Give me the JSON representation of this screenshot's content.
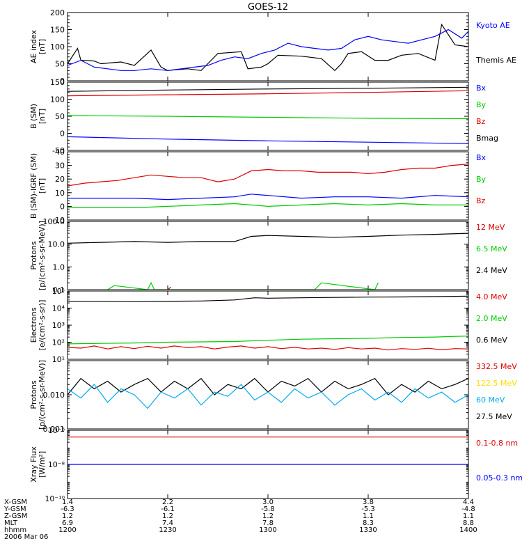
{
  "title": "GOES-12",
  "panels": [
    {
      "id": "ae",
      "ylabel": "AE index\n[nT]",
      "scale": "linear",
      "ylim": [
        0,
        200
      ],
      "ticks": [
        {
          "v": 0,
          "t": "0"
        },
        {
          "v": 50,
          "t": "50"
        },
        {
          "v": 100,
          "t": "100"
        },
        {
          "v": 150,
          "t": "150"
        },
        {
          "v": 200,
          "t": "200"
        }
      ],
      "legend": [
        {
          "text": "Kyoto AE",
          "color": "#0000ff"
        },
        {
          "text": "Themis AE",
          "color": "#000000"
        }
      ]
    },
    {
      "id": "b",
      "ylabel": "B (SM)\n[nT]",
      "scale": "linear",
      "ylim": [
        -50,
        150
      ],
      "ticks": [
        {
          "v": -50,
          "t": "-50"
        },
        {
          "v": 0,
          "t": "0"
        },
        {
          "v": 50,
          "t": "50"
        },
        {
          "v": 100,
          "t": "100"
        },
        {
          "v": 150,
          "t": "150"
        }
      ],
      "legend": [
        {
          "text": "Bx",
          "color": "#0000ff"
        },
        {
          "text": "By",
          "color": "#00cc00"
        },
        {
          "text": "Bz",
          "color": "#dd0000"
        },
        {
          "text": "Bmag",
          "color": "#000000"
        }
      ]
    },
    {
      "id": "db",
      "ylabel": "B (SM)-IGRF (SM)\n[nT]",
      "scale": "linear",
      "ylim": [
        -10,
        40
      ],
      "ticks": [
        {
          "v": -10,
          "t": "-10"
        },
        {
          "v": 0,
          "t": "0"
        },
        {
          "v": 10,
          "t": "10"
        },
        {
          "v": 20,
          "t": "20"
        },
        {
          "v": 30,
          "t": "30"
        },
        {
          "v": 40,
          "t": "40"
        }
      ],
      "legend": [
        {
          "text": "Bx",
          "color": "#0000ff"
        },
        {
          "text": "By",
          "color": "#00cc00"
        },
        {
          "text": "Bz",
          "color": "#dd0000"
        }
      ]
    },
    {
      "id": "protons",
      "ylabel": "Protons\n[p/(cm²-s-sr-MeV)]",
      "scale": "log",
      "ylim": [
        0.1,
        100
      ],
      "ticks": [
        {
          "v": 0.1,
          "t": "0.1"
        },
        {
          "v": 1,
          "t": "1.0"
        },
        {
          "v": 10,
          "t": "10.0"
        },
        {
          "v": 100,
          "t": "100.0"
        }
      ],
      "legend": [
        {
          "text": "12 MeV",
          "color": "#dd0000"
        },
        {
          "text": "6.5 MeV",
          "color": "#00cc00"
        },
        {
          "text": "2.4 MeV",
          "color": "#000000"
        }
      ]
    },
    {
      "id": "electrons",
      "ylabel": "Electrons\n[e/(cm²-s-sr)]",
      "scale": "log",
      "ylim": [
        10,
        100000
      ],
      "ticks": [
        {
          "v": 10,
          "t": "10¹"
        },
        {
          "v": 100,
          "t": "10²"
        },
        {
          "v": 1000,
          "t": "10³"
        },
        {
          "v": 10000,
          "t": "10⁴"
        },
        {
          "v": 100000,
          "t": "10⁵"
        }
      ],
      "legend": [
        {
          "text": "4.0 MeV",
          "color": "#dd0000"
        },
        {
          "text": "2.0 MeV",
          "color": "#00cc00"
        },
        {
          "text": "0.6 MeV",
          "color": "#000000"
        }
      ]
    },
    {
      "id": "hep",
      "ylabel": "Protons\n[p/(cm²-s-sr-MeV)]",
      "scale": "log",
      "ylim": [
        0.001,
        0.1
      ],
      "ticks": [
        {
          "v": 0.001,
          "t": "0.001"
        },
        {
          "v": 0.01,
          "t": "0.010"
        },
        {
          "v": 0.1,
          "t": ""
        }
      ],
      "legend": [
        {
          "text": "332.5 MeV",
          "color": "#dd0000"
        },
        {
          "text": "122.5 MeV",
          "color": "#ffdd00"
        },
        {
          "text": "60 MeV",
          "color": "#00aaee"
        },
        {
          "text": "27.5 MeV",
          "color": "#000000"
        }
      ]
    },
    {
      "id": "xray",
      "ylabel": "Xray Flux\n[W/m²]",
      "scale": "log",
      "ylim": [
        1e-10,
        1e-06
      ],
      "ticks": [
        {
          "v": 1e-10,
          "t": "10⁻¹⁰"
        },
        {
          "v": 1e-08,
          "t": "10⁻⁸"
        },
        {
          "v": 1e-06,
          "t": "10⁻⁶"
        }
      ],
      "legend": [
        {
          "text": "0.1-0.8 nm",
          "color": "#dd0000"
        },
        {
          "text": "0.05-0.3 nm",
          "color": "#0000ff"
        }
      ]
    }
  ],
  "xaxis": {
    "row_labels": [
      "X-GSM",
      "Y-GSM",
      "Z-GSM",
      "MLT",
      "hhmm",
      "2006 Mar 06"
    ],
    "ticks": [
      {
        "t": 1200,
        "vals": [
          "1.4",
          "-6.3",
          "1.2",
          "6.9",
          "1200"
        ]
      },
      {
        "t": 1230,
        "vals": [
          "2.2",
          "-6.1",
          "1.2",
          "7.4",
          "1230"
        ]
      },
      {
        "t": 1300,
        "vals": [
          "3.0",
          "-5.8",
          "1.2",
          "7.8",
          "1300"
        ]
      },
      {
        "t": 1330,
        "vals": [
          "3.8",
          "-5.3",
          "1.1",
          "8.3",
          "1330"
        ]
      },
      {
        "t": 1400,
        "vals": [
          "4.4",
          "-4.8",
          "1.1",
          "8.8",
          "1400"
        ]
      }
    ]
  },
  "chart_data": {
    "type": "line",
    "title": "GOES-12",
    "x_unit": "minutes after 12:00 UT, 2006 Mar 06",
    "xlim": [
      0,
      120
    ],
    "panels": [
      {
        "panel": "ae",
        "series": [
          {
            "name": "Themis AE",
            "color": "#000000",
            "x": [
              0,
              3,
              4,
              8,
              10,
              16,
              20,
              25,
              28,
              30,
              36,
              40,
              45,
              52,
              54,
              58,
              60,
              63,
              70,
              76,
              80,
              82,
              84,
              88,
              92,
              96,
              100,
              105,
              110,
              112,
              116,
              120
            ],
            "y": [
              50,
              95,
              60,
              58,
              50,
              55,
              45,
              90,
              40,
              30,
              35,
              30,
              80,
              85,
              35,
              40,
              50,
              75,
              72,
              65,
              30,
              50,
              80,
              85,
              60,
              60,
              75,
              80,
              60,
              165,
              105,
              100
            ]
          },
          {
            "name": "Kyoto AE",
            "color": "#0000ff",
            "x": [
              0,
              4,
              8,
              12,
              16,
              20,
              25,
              30,
              34,
              38,
              42,
              46,
              50,
              54,
              58,
              62,
              66,
              70,
              74,
              78,
              82,
              86,
              90,
              94,
              98,
              102,
              106,
              110,
              114,
              118,
              120
            ],
            "y": [
              45,
              60,
              40,
              35,
              30,
              30,
              35,
              30,
              35,
              40,
              45,
              60,
              70,
              65,
              80,
              90,
              110,
              100,
              95,
              90,
              95,
              120,
              130,
              120,
              115,
              110,
              120,
              130,
              150,
              125,
              145
            ]
          }
        ]
      },
      {
        "panel": "b",
        "series": [
          {
            "name": "Bmag",
            "color": "#000000",
            "x": [
              0,
              30,
              60,
              90,
              120
            ],
            "y": [
              123,
              127,
              130,
              132,
              135
            ]
          },
          {
            "name": "Bz",
            "color": "#dd0000",
            "x": [
              0,
              30,
              60,
              90,
              120
            ],
            "y": [
              110,
              113,
              116,
              120,
              125
            ]
          },
          {
            "name": "By",
            "color": "#00cc00",
            "x": [
              0,
              30,
              60,
              90,
              120
            ],
            "y": [
              52,
              50,
              47,
              44,
              43
            ]
          },
          {
            "name": "Bx",
            "color": "#0000ff",
            "x": [
              0,
              30,
              60,
              90,
              120
            ],
            "y": [
              -10,
              -17,
              -22,
              -26,
              -30
            ]
          }
        ]
      },
      {
        "panel": "db",
        "series": [
          {
            "name": "Bz",
            "color": "#dd0000",
            "x": [
              0,
              5,
              10,
              15,
              20,
              25,
              30,
              35,
              40,
              45,
              50,
              55,
              60,
              65,
              70,
              75,
              80,
              85,
              90,
              95,
              100,
              105,
              110,
              115,
              120
            ],
            "y": [
              15,
              17,
              18,
              19,
              21,
              23,
              22,
              21,
              21,
              18,
              20,
              26,
              27,
              26,
              26,
              25,
              25,
              25,
              24,
              25,
              27,
              28,
              28,
              30,
              31
            ]
          },
          {
            "name": "Bx",
            "color": "#0000ff",
            "x": [
              0,
              10,
              20,
              30,
              40,
              50,
              55,
              60,
              70,
              80,
              90,
              100,
              110,
              120
            ],
            "y": [
              6,
              6,
              6,
              5,
              6,
              7,
              9,
              8,
              6,
              7,
              7,
              6,
              8,
              7
            ]
          },
          {
            "name": "By",
            "color": "#00cc00",
            "x": [
              0,
              10,
              20,
              30,
              40,
              50,
              55,
              60,
              70,
              80,
              90,
              100,
              110,
              120
            ],
            "y": [
              -1,
              -1,
              -1,
              0,
              1,
              2,
              1,
              0,
              1,
              2,
              1,
              2,
              1,
              1
            ]
          }
        ]
      },
      {
        "panel": "protons",
        "series": [
          {
            "name": "2.4 MeV",
            "color": "#000000",
            "x": [
              0,
              10,
              20,
              30,
              40,
              50,
              55,
              60,
              70,
              80,
              90,
              100,
              110,
              120
            ],
            "y": [
              11,
              12,
              13,
              12,
              13,
              13,
              22,
              24,
              22,
              20,
              22,
              25,
              27,
              30
            ]
          },
          {
            "name": "6.5 MeV",
            "color": "#00cc00",
            "x": [
              12,
              14,
              24,
              25,
              26,
              74,
              76,
              92,
              93
            ],
            "y": [
              0.1,
              0.15,
              0.1,
              0.2,
              0.1,
              0.1,
              0.2,
              0.1,
              0.2
            ]
          },
          {
            "name": "12 MeV",
            "color": "#dd0000",
            "x": [
              30,
              31
            ],
            "y": [
              0.1,
              0.13
            ]
          }
        ]
      },
      {
        "panel": "electrons",
        "series": [
          {
            "name": "0.6 MeV",
            "color": "#000000",
            "x": [
              0,
              20,
              40,
              50,
              56,
              60,
              70,
              80,
              90,
              100,
              110,
              120
            ],
            "y": [
              25000,
              24000,
              26000,
              30000,
              40000,
              38000,
              40000,
              42000,
              44000,
              45000,
              47000,
              50000
            ]
          },
          {
            "name": "2.0 MeV",
            "color": "#00cc00",
            "x": [
              0,
              10,
              20,
              30,
              40,
              50,
              60,
              70,
              80,
              90,
              100,
              110,
              120
            ],
            "y": [
              80,
              85,
              90,
              100,
              105,
              110,
              130,
              150,
              160,
              170,
              190,
              200,
              230
            ]
          },
          {
            "name": "4.0 MeV",
            "color": "#dd0000",
            "x": [
              0,
              4,
              8,
              12,
              16,
              20,
              24,
              28,
              32,
              36,
              40,
              44,
              48,
              52,
              56,
              60,
              64,
              68,
              72,
              76,
              80,
              84,
              88,
              92,
              96,
              100,
              104,
              108,
              112,
              116,
              120
            ],
            "y": [
              50,
              45,
              60,
              40,
              55,
              42,
              58,
              45,
              60,
              48,
              55,
              40,
              52,
              60,
              45,
              55,
              42,
              50,
              40,
              45,
              38,
              48,
              40,
              45,
              35,
              42,
              38,
              44,
              36,
              42,
              40
            ]
          }
        ]
      },
      {
        "panel": "hep",
        "series": [
          {
            "name": "27.5 MeV",
            "color": "#000000",
            "x": [
              0,
              4,
              8,
              12,
              16,
              20,
              24,
              28,
              32,
              36,
              40,
              44,
              48,
              52,
              56,
              60,
              64,
              68,
              72,
              76,
              80,
              84,
              88,
              92,
              96,
              100,
              104,
              108,
              112,
              116,
              120
            ],
            "y": [
              0.01,
              0.03,
              0.015,
              0.025,
              0.012,
              0.02,
              0.03,
              0.012,
              0.025,
              0.015,
              0.03,
              0.01,
              0.02,
              0.015,
              0.03,
              0.012,
              0.025,
              0.018,
              0.03,
              0.012,
              0.025,
              0.015,
              0.02,
              0.03,
              0.01,
              0.02,
              0.012,
              0.025,
              0.015,
              0.02,
              0.03
            ]
          },
          {
            "name": "60 MeV",
            "color": "#00aaee",
            "x": [
              0,
              4,
              8,
              12,
              16,
              20,
              24,
              28,
              32,
              36,
              40,
              44,
              48,
              52,
              56,
              60,
              64,
              68,
              72,
              76,
              80,
              84,
              88,
              92,
              96,
              100,
              104,
              108,
              112,
              116,
              120
            ],
            "y": [
              0.015,
              0.008,
              0.02,
              0.006,
              0.015,
              0.01,
              0.004,
              0.012,
              0.008,
              0.015,
              0.005,
              0.012,
              0.009,
              0.02,
              0.007,
              0.012,
              0.006,
              0.015,
              0.008,
              0.012,
              0.005,
              0.01,
              0.015,
              0.007,
              0.012,
              0.006,
              0.015,
              0.008,
              0.012,
              0.006,
              0.01
            ]
          }
        ]
      },
      {
        "panel": "xray",
        "series": [
          {
            "name": "0.1-0.8 nm",
            "color": "#dd0000",
            "x": [
              0,
              120
            ],
            "y": [
              4e-07,
              4e-07
            ]
          },
          {
            "name": "0.05-0.3 nm",
            "color": "#0000ff",
            "x": [
              0,
              120
            ],
            "y": [
              1e-08,
              1e-08
            ]
          }
        ]
      }
    ]
  }
}
